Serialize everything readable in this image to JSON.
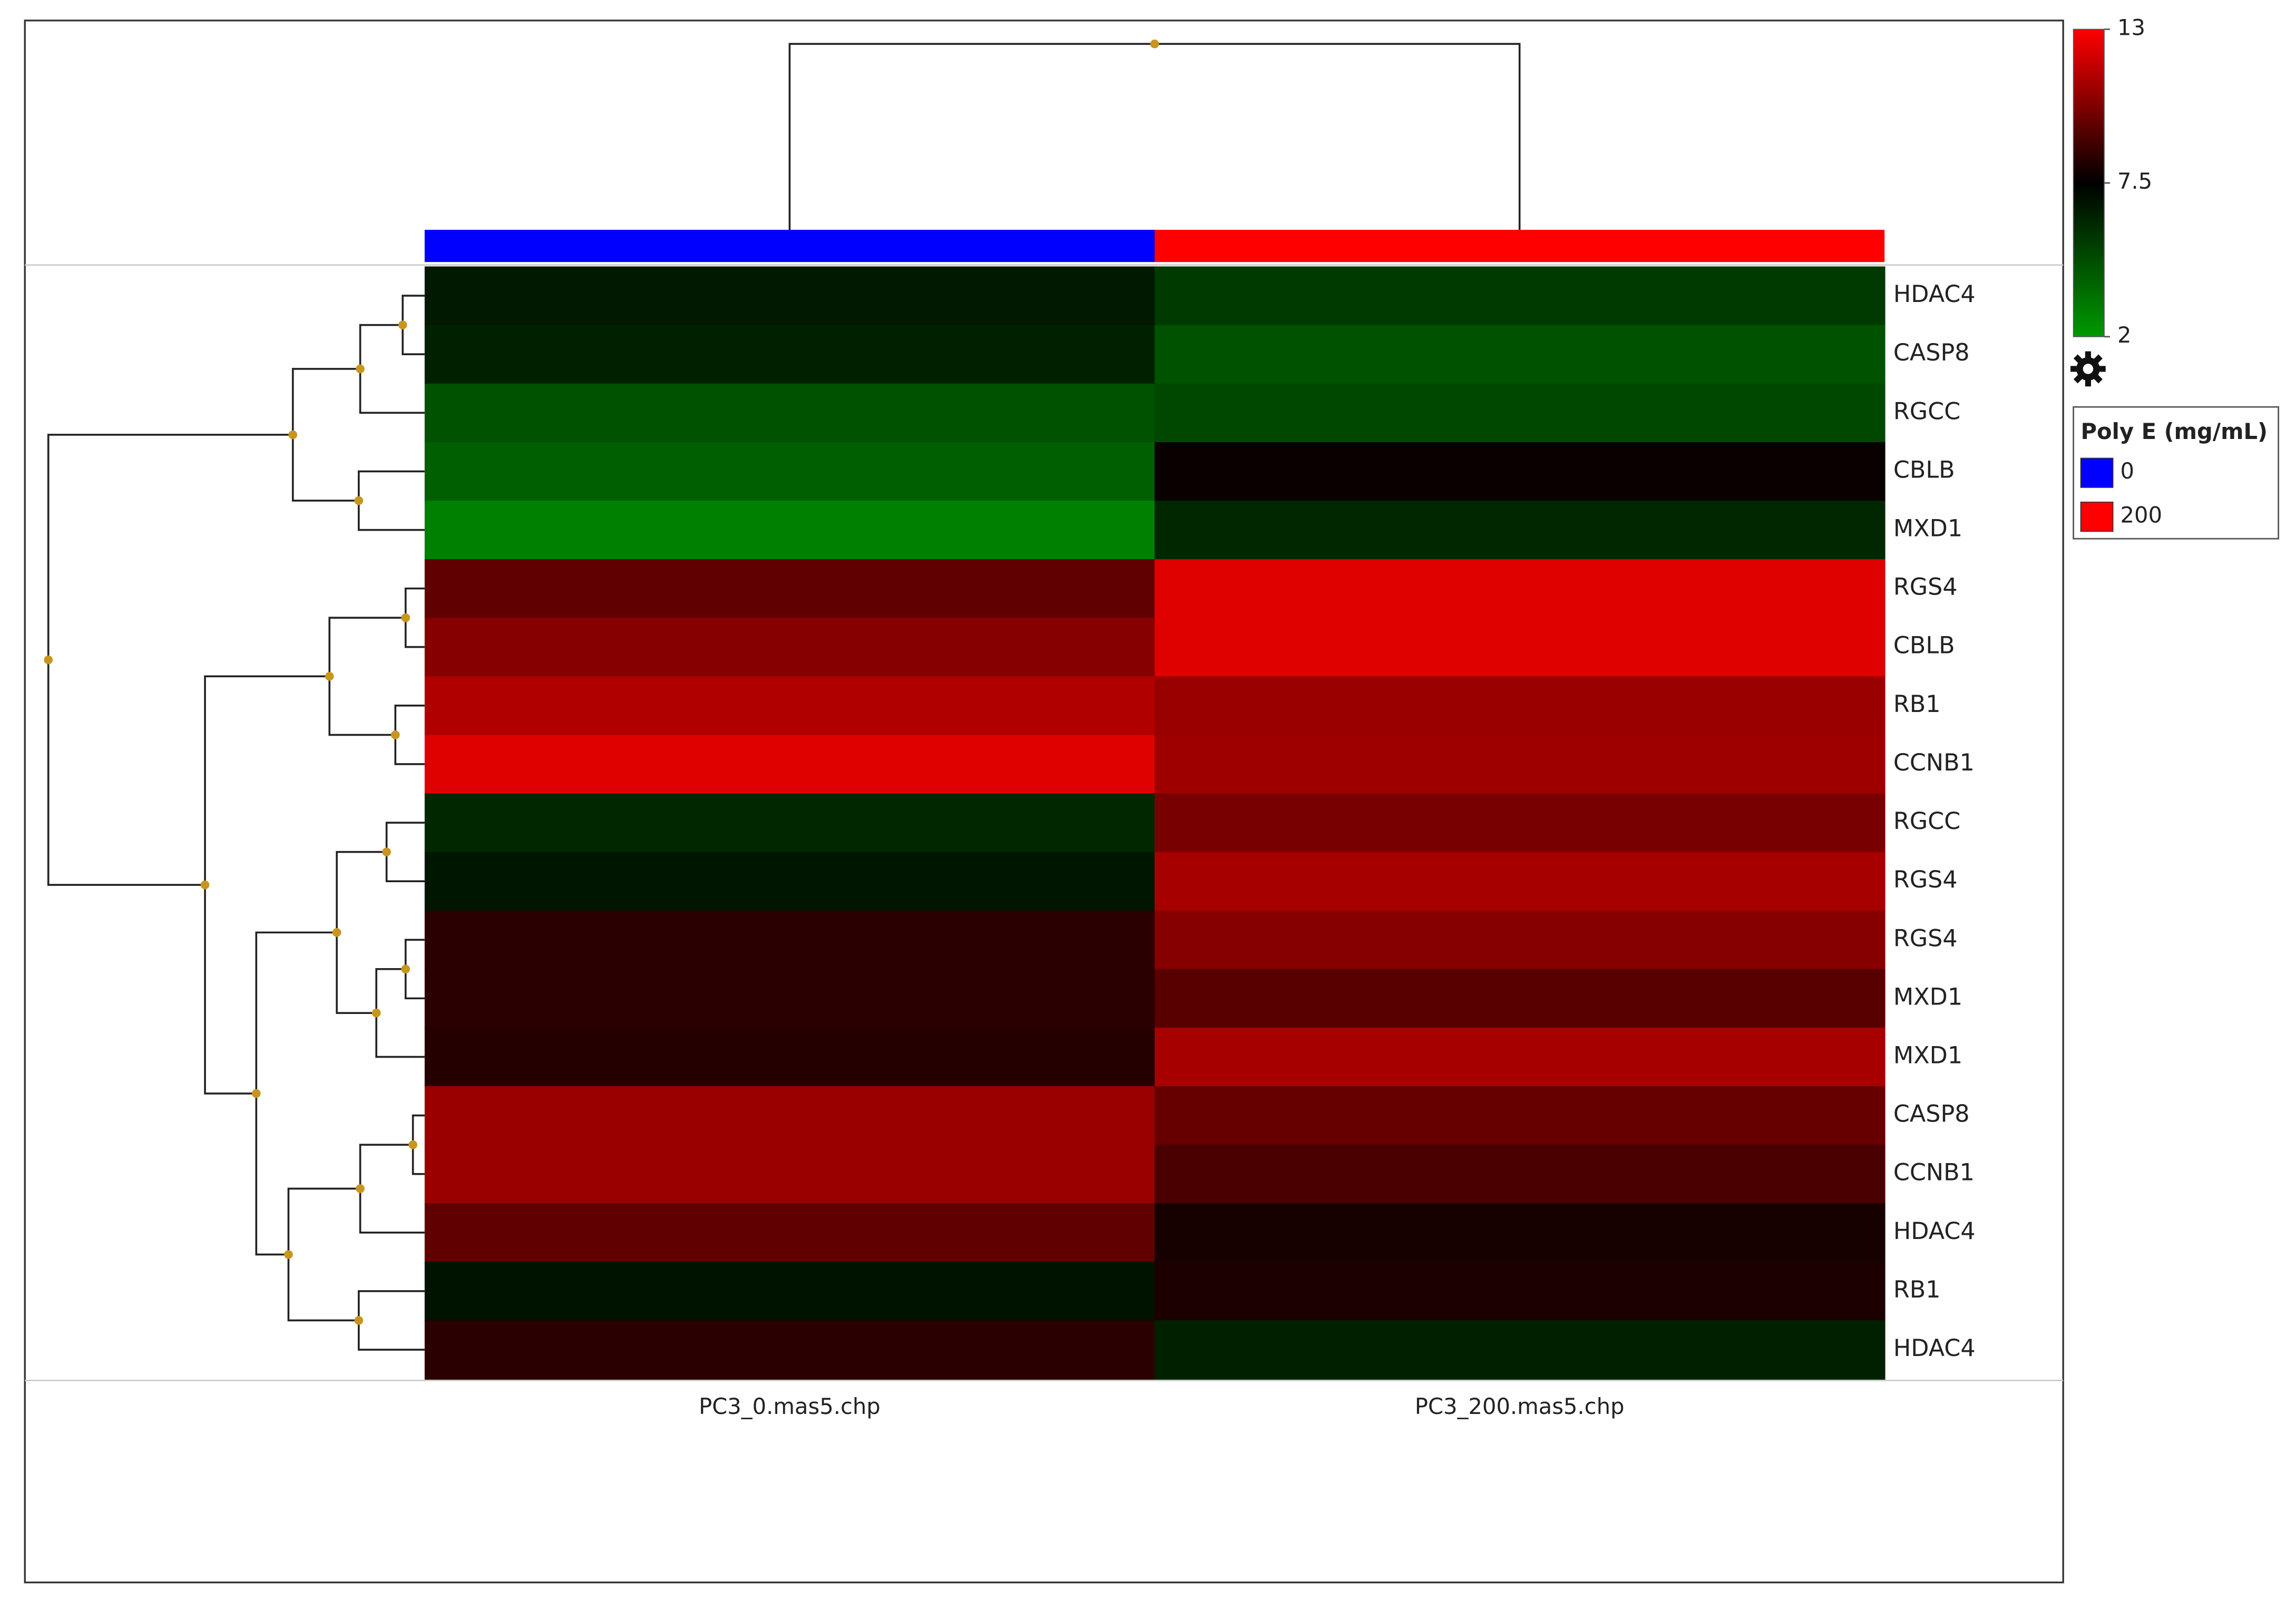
{
  "chart_data": {
    "type": "heatmap",
    "rows": [
      "HDAC4",
      "CASP8",
      "RGCC",
      "CBLB",
      "MXD1",
      "RGS4",
      "CBLB",
      "RB1",
      "CCNB1",
      "RGCC",
      "RGS4",
      "RGS4",
      "MXD1",
      "MXD1",
      "CASP8",
      "CCNB1",
      "HDAC4",
      "RB1",
      "HDAC4"
    ],
    "columns": [
      "PC3_0.mas5.chp",
      "PC3_200.mas5.chp"
    ],
    "values": [
      [
        6.6,
        5.4
      ],
      [
        6.3,
        4.6
      ],
      [
        4.6,
        4.9
      ],
      [
        4.1,
        7.7
      ],
      [
        2.9,
        6.1
      ],
      [
        9.6,
        12.3
      ],
      [
        10.4,
        12.3
      ],
      [
        11.3,
        10.8
      ],
      [
        12.3,
        10.9
      ],
      [
        6.1,
        10.1
      ],
      [
        6.7,
        11.1
      ],
      [
        8.4,
        10.4
      ],
      [
        8.4,
        9.4
      ],
      [
        8.3,
        11.1
      ],
      [
        10.8,
        9.7
      ],
      [
        10.8,
        9.1
      ],
      [
        9.6,
        8.0
      ],
      [
        6.8,
        8.1
      ],
      [
        8.4,
        6.3
      ]
    ],
    "zlim": [
      2,
      13
    ],
    "zticks": [
      2,
      7.5,
      13
    ],
    "colorscale": [
      "#009900",
      "#000000",
      "#ff0000"
    ],
    "legend": {
      "title": "Poly E (mg/mL)",
      "groups": [
        {
          "name": "0",
          "color": "#0000ff"
        },
        {
          "name": "200",
          "color": "#ff0000"
        }
      ]
    }
  }
}
